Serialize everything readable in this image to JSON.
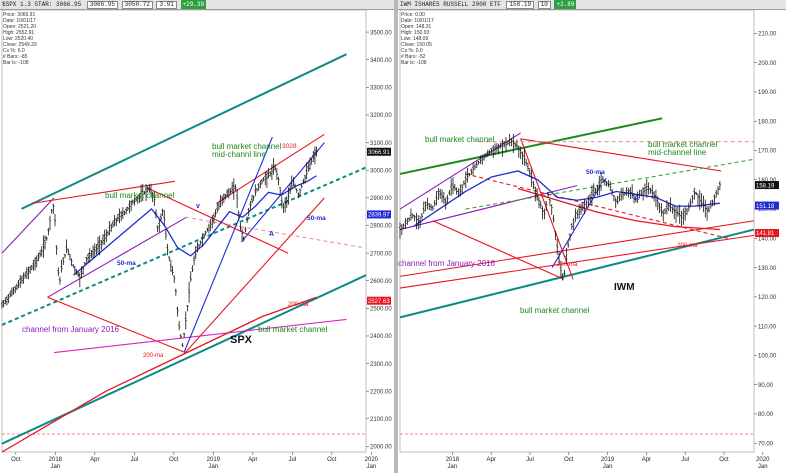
{
  "colors": {
    "bull_channel": "#1a8a1a",
    "teal_line": "#0e8a86",
    "red_line": "#e8141e",
    "blue_ma": "#1f2ad6",
    "purple_line": "#8b1ab8",
    "magenta_line": "#e020c0",
    "green_dashed": "#3aa33a",
    "salmon_dashed": "#e89696",
    "price_bars": "#111111"
  },
  "left_panel": {
    "topbar": {
      "symbol": "$SPX 1.3 STAR: 3066.95",
      "field_1": "3066.95",
      "field_2": "3050.72",
      "field_3": "3.91",
      "change": "+29.39"
    },
    "info": [
      "Price: 3066.91",
      "Date: 10/01/17",
      "Open: 2521.20",
      "High: 2552.91",
      "Low: 2520.40",
      "Close: 2549.33",
      "Cs %: 6.0",
      "# Bars: -85",
      "Bar lx: -108"
    ],
    "annotations": {
      "bull_market_channel_top": "bull market channel",
      "bull_market_channel_mid": "bull market channel\nmid-channl line",
      "bull_market_channel_bottom": "bull market channel",
      "channel_from_jan_2016": "channel from January 2016",
      "ma50_left": "50-ma",
      "ma50_right": "50-ma",
      "ma200_left": "200-ma",
      "ma200_right": "200-ma",
      "top_value": "3028",
      "index_name": "SPX",
      "marker_v": "v",
      "marker_a": "A"
    }
  },
  "right_panel": {
    "topbar": {
      "symbol": "IWM ISHARES RUSSELL 2000 ETF",
      "field_1": "158.19",
      "field_2": "10",
      "change": "+2.89"
    },
    "info": [
      "Price: 0.00",
      "Date: 10/01/17",
      "Open: 148.31",
      "High: 150.93",
      "Low: 148.09",
      "Close: 150.05",
      "Cs %: 0.0",
      "# Bars: -52",
      "Bar lx: -108"
    ],
    "annotations": {
      "bull_market_channel_top": "bull market channel",
      "bull_market_channel_mid": "bull market channel\nmid-channel line",
      "bull_market_channel_bottom": "bull market channel",
      "channel_from_jan_2016": "channel from January 2016",
      "ma50": "50-ma",
      "ma200_left": "200-ma",
      "ma200_right": "200-ma",
      "index_name": "IWM",
      "marker_v": "V",
      "marker_a": "A"
    }
  },
  "chart_data": [
    {
      "type": "bar",
      "symbol": "SPX",
      "x_axis_labels": [
        "Oct",
        "2018",
        "Apr",
        "Jul",
        "Oct",
        "2019",
        "Apr",
        "Jul",
        "Oct",
        "2020"
      ],
      "x_axis_sublabels": [
        "",
        "Jan",
        "",
        "",
        "",
        "Jan",
        "",
        "",
        "",
        "Jan"
      ],
      "y_ticks": [
        2000,
        2100,
        2200,
        2300,
        2400,
        2500,
        2600,
        2700,
        2800,
        2900,
        3000,
        3100,
        3200,
        3300,
        3400,
        3500
      ],
      "y_tick_labels": [
        "2000.00",
        "2100.00",
        "2200.00",
        "2300.00",
        "2400.00",
        "2500.00",
        "2600.00",
        "2700.00",
        "2800.00",
        "2900.00",
        "3000.00",
        "3100.00",
        "3200.00",
        "3300.00",
        "3400.00",
        "3500.00"
      ],
      "ylim": [
        1980,
        3580
      ],
      "x_range_months": [
        0,
        28
      ],
      "price_flags": [
        {
          "label": "3066.91",
          "value": 3066.91,
          "color": "#111111"
        },
        {
          "label": "2839.97",
          "value": 2839.97,
          "color": "#1f2ad6"
        },
        {
          "label": "2527.63",
          "value": 2527.63,
          "color": "#e8141e"
        }
      ],
      "price_path": [
        [
          0,
          2510
        ],
        [
          0.5,
          2540
        ],
        [
          1,
          2570
        ],
        [
          1.5,
          2600
        ],
        [
          2,
          2630
        ],
        [
          2.5,
          2660
        ],
        [
          3,
          2700
        ],
        [
          3.5,
          2760
        ],
        [
          3.8,
          2850
        ],
        [
          4.0,
          2875
        ],
        [
          4.2,
          2720
        ],
        [
          4.4,
          2580
        ],
        [
          4.6,
          2650
        ],
        [
          5,
          2720
        ],
        [
          5.5,
          2650
        ],
        [
          6,
          2610
        ],
        [
          6.5,
          2680
        ],
        [
          7,
          2700
        ],
        [
          7.5,
          2730
        ],
        [
          8,
          2760
        ],
        [
          8.5,
          2800
        ],
        [
          9,
          2830
        ],
        [
          9.5,
          2850
        ],
        [
          10,
          2880
        ],
        [
          10.5,
          2900
        ],
        [
          11,
          2920
        ],
        [
          11.3,
          2935
        ],
        [
          11.7,
          2900
        ],
        [
          12,
          2780
        ],
        [
          12.4,
          2860
        ],
        [
          12.7,
          2720
        ],
        [
          13,
          2650
        ],
        [
          13.3,
          2600
        ],
        [
          13.6,
          2440
        ],
        [
          13.9,
          2360
        ],
        [
          14.2,
          2480
        ],
        [
          14.5,
          2600
        ],
        [
          14.8,
          2680
        ],
        [
          15,
          2710
        ],
        [
          15.5,
          2760
        ],
        [
          16,
          2800
        ],
        [
          16.5,
          2850
        ],
        [
          17,
          2900
        ],
        [
          17.5,
          2920
        ],
        [
          18,
          2940
        ],
        [
          18.3,
          2800
        ],
        [
          18.6,
          2750
        ],
        [
          19,
          2860
        ],
        [
          19.5,
          2920
        ],
        [
          20,
          2960
        ],
        [
          20.5,
          2980
        ],
        [
          21,
          3010
        ],
        [
          21.3,
          2960
        ],
        [
          21.6,
          2860
        ],
        [
          22,
          2900
        ],
        [
          22.4,
          2960
        ],
        [
          22.8,
          2910
        ],
        [
          23.2,
          2960
        ],
        [
          23.6,
          3010
        ],
        [
          24,
          3050
        ],
        [
          24.2,
          3066.91
        ]
      ],
      "ma50": [
        [
          5.5,
          2620
        ],
        [
          7,
          2680
        ],
        [
          8.5,
          2740
        ],
        [
          10,
          2800
        ],
        [
          11.5,
          2860
        ],
        [
          12.5,
          2800
        ],
        [
          13.5,
          2720
        ],
        [
          14.5,
          2690
        ],
        [
          15.5,
          2730
        ],
        [
          16.5,
          2790
        ],
        [
          17.5,
          2850
        ],
        [
          18.5,
          2830
        ],
        [
          19.5,
          2870
        ],
        [
          20.5,
          2920
        ],
        [
          21.5,
          2910
        ],
        [
          22.5,
          2940
        ],
        [
          23.5,
          2960
        ],
        [
          24.2,
          2980
        ]
      ],
      "ma200": [
        [
          0,
          1980
        ],
        [
          4,
          2090
        ],
        [
          8,
          2200
        ],
        [
          12,
          2290
        ],
        [
          16,
          2380
        ],
        [
          20,
          2470
        ],
        [
          24.2,
          2540
        ]
      ],
      "trend_lines": [
        {
          "name": "bull-channel-top",
          "color": "#0e8a86",
          "from": [
            1.5,
            2860
          ],
          "to": [
            26.5,
            3420
          ]
        },
        {
          "name": "bull-channel-bottom",
          "color": "#0e8a86",
          "from": [
            0,
            2010
          ],
          "to": [
            28,
            2620
          ]
        },
        {
          "name": "bull-channel-mid",
          "color": "#0e8a86",
          "from": [
            0,
            2440
          ],
          "to": [
            28,
            3010
          ],
          "dashed": true
        },
        {
          "name": "jan2016-channel-top",
          "color": "#8b1ab8",
          "from": [
            0,
            2700
          ],
          "to": [
            4.0,
            2900
          ]
        },
        {
          "name": "jan2016-channel-upper",
          "color": "#8b1ab8",
          "from": [
            3.5,
            2540
          ],
          "to": [
            14.2,
            2830
          ]
        },
        {
          "name": "top-red-1",
          "color": "#e8141e",
          "from": [
            2.3,
            2880
          ],
          "to": [
            13.3,
            2960
          ]
        },
        {
          "name": "top-red-2",
          "color": "#e8141e",
          "from": [
            16.5,
            2880
          ],
          "to": [
            24.8,
            3130
          ]
        },
        {
          "name": "red-down-1",
          "color": "#e8141e",
          "from": [
            11.2,
            2935
          ],
          "to": [
            22,
            2700
          ]
        },
        {
          "name": "red-down-2",
          "color": "#e8141e",
          "from": [
            3.5,
            2540
          ],
          "to": [
            14.1,
            2340
          ]
        },
        {
          "name": "red-up-1",
          "color": "#e8141e",
          "from": [
            14.1,
            2340
          ],
          "to": [
            24.8,
            2900
          ]
        },
        {
          "name": "salmon-dashed",
          "color": "#e89696",
          "from": [
            14.1,
            2830
          ],
          "to": [
            27.8,
            2720
          ],
          "dashed": true
        },
        {
          "name": "magenta-channel",
          "color": "#e020c0",
          "from": [
            4,
            2340
          ],
          "to": [
            26.5,
            2460
          ]
        },
        {
          "name": "blue-steep-1",
          "color": "#1f2ad6",
          "from": [
            14.0,
            2340
          ],
          "to": [
            20.8,
            3120
          ]
        },
        {
          "name": "blue-steep-2",
          "color": "#1f2ad6",
          "from": [
            18.4,
            2740
          ],
          "to": [
            24.8,
            3100
          ]
        }
      ]
    },
    {
      "type": "bar",
      "symbol": "IWM",
      "x_axis_labels": [
        "2018",
        "Apr",
        "Jul",
        "Oct",
        "2019",
        "Apr",
        "Jul",
        "Oct",
        "2020"
      ],
      "x_axis_sublabels": [
        "Jan",
        "",
        "",
        "",
        "Jan",
        "",
        "",
        "",
        "Jan"
      ],
      "y_ticks": [
        70,
        80,
        90,
        100,
        110,
        120,
        130,
        140,
        150,
        160,
        170,
        180,
        190,
        200,
        210
      ],
      "y_tick_labels": [
        "70.00",
        "80.00",
        "90.00",
        "100.00",
        "110.00",
        "120.00",
        "130.00",
        "140.00",
        "150.00",
        "160.00",
        "170.00",
        "180.00",
        "190.00",
        "200.00",
        "210.00"
      ],
      "ylim": [
        67,
        218
      ],
      "x_range_months": [
        0,
        27
      ],
      "price_flags": [
        {
          "label": "158.19",
          "value": 158.19,
          "color": "#111111"
        },
        {
          "label": "151.18",
          "value": 151.18,
          "color": "#1f2ad6"
        },
        {
          "label": "141.81",
          "value": 141.81,
          "color": "#e8141e"
        }
      ],
      "price_path": [
        [
          0,
          143
        ],
        [
          1,
          148
        ],
        [
          1.5,
          145
        ],
        [
          2,
          152
        ],
        [
          2.5,
          150
        ],
        [
          3,
          156
        ],
        [
          3.5,
          152
        ],
        [
          4,
          158
        ],
        [
          4.5,
          155
        ],
        [
          5,
          160
        ],
        [
          5.5,
          163
        ],
        [
          6,
          166
        ],
        [
          6.5,
          168
        ],
        [
          7,
          170
        ],
        [
          7.5,
          171
        ],
        [
          8,
          172
        ],
        [
          8.5,
          173
        ],
        [
          9,
          171
        ],
        [
          9.5,
          167
        ],
        [
          10,
          161
        ],
        [
          10.5,
          154
        ],
        [
          11,
          148
        ],
        [
          11.3,
          155
        ],
        [
          11.6,
          150
        ],
        [
          11.9,
          140
        ],
        [
          12.2,
          130
        ],
        [
          12.5,
          126
        ],
        [
          12.8,
          137
        ],
        [
          13.1,
          144
        ],
        [
          13.5,
          148
        ],
        [
          14,
          151
        ],
        [
          14.5,
          154
        ],
        [
          15,
          157
        ],
        [
          15.5,
          160
        ],
        [
          16,
          158
        ],
        [
          16.5,
          152
        ],
        [
          17,
          155
        ],
        [
          17.5,
          156
        ],
        [
          18,
          153
        ],
        [
          18.5,
          156
        ],
        [
          19,
          157
        ],
        [
          19.5,
          154
        ],
        [
          20,
          148
        ],
        [
          20.5,
          151
        ],
        [
          21,
          149
        ],
        [
          21.5,
          147
        ],
        [
          22,
          150
        ],
        [
          22.5,
          156
        ],
        [
          23,
          152
        ],
        [
          23.5,
          149
        ],
        [
          24,
          154
        ],
        [
          24.4,
          158.19
        ]
      ],
      "ma50": [
        [
          1,
          144
        ],
        [
          3,
          150
        ],
        [
          5,
          156
        ],
        [
          7,
          161
        ],
        [
          9,
          163
        ],
        [
          10.5,
          160
        ],
        [
          12,
          154
        ],
        [
          13.5,
          153
        ],
        [
          15,
          154
        ],
        [
          16.5,
          156
        ],
        [
          18,
          155
        ],
        [
          19.5,
          154
        ],
        [
          21,
          151
        ],
        [
          22.5,
          151
        ],
        [
          24.4,
          152
        ]
      ],
      "ma200": [
        [
          9,
          157
        ],
        [
          12,
          153
        ],
        [
          15,
          149
        ],
        [
          18,
          146
        ],
        [
          21,
          144
        ],
        [
          24.4,
          143
        ]
      ],
      "trend_lines": [
        {
          "name": "bull-channel-top",
          "color": "#1a8a1a",
          "from": [
            0,
            162
          ],
          "to": [
            20,
            181
          ]
        },
        {
          "name": "bull-channel-bottom",
          "color": "#0e8a86",
          "from": [
            0,
            113
          ],
          "to": [
            27,
            143
          ]
        },
        {
          "name": "jan2016-channel",
          "color": "#e8141e",
          "from": [
            0,
            127
          ],
          "to": [
            27,
            146
          ]
        },
        {
          "name": "purple-upper",
          "color": "#8b1ab8",
          "from": [
            0,
            150
          ],
          "to": [
            9.2,
            176
          ]
        },
        {
          "name": "purple-lower",
          "color": "#8b1ab8",
          "from": [
            0,
            143
          ],
          "to": [
            13.5,
            158
          ]
        },
        {
          "name": "red-top-1",
          "color": "#e8141e",
          "from": [
            9.2,
            174
          ],
          "to": [
            24.5,
            163
          ]
        },
        {
          "name": "red-down",
          "color": "#e8141e",
          "from": [
            9.2,
            174
          ],
          "to": [
            13.2,
            126
          ]
        },
        {
          "name": "salmon-dashed-top",
          "color": "#e89696",
          "from": [
            6,
            173
          ],
          "to": [
            27,
            173
          ],
          "dashed": true
        },
        {
          "name": "red-dashed-down",
          "color": "#e8141e",
          "from": [
            5,
            162
          ],
          "to": [
            25,
            140
          ],
          "dashed": true
        },
        {
          "name": "green-dashed-mid",
          "color": "#3aa33a",
          "from": [
            5,
            150
          ],
          "to": [
            27,
            167
          ],
          "dashed": true
        },
        {
          "name": "blue-up",
          "color": "#1f2ad6",
          "from": [
            11.6,
            130
          ],
          "to": [
            15.3,
            158
          ]
        },
        {
          "name": "red-low",
          "color": "#e8141e",
          "from": [
            2.5,
            146
          ],
          "to": [
            12.5,
            126
          ]
        },
        {
          "name": "red-channel-lower",
          "color": "#e8141e",
          "from": [
            0,
            123
          ],
          "to": [
            27,
            141
          ]
        }
      ]
    }
  ]
}
